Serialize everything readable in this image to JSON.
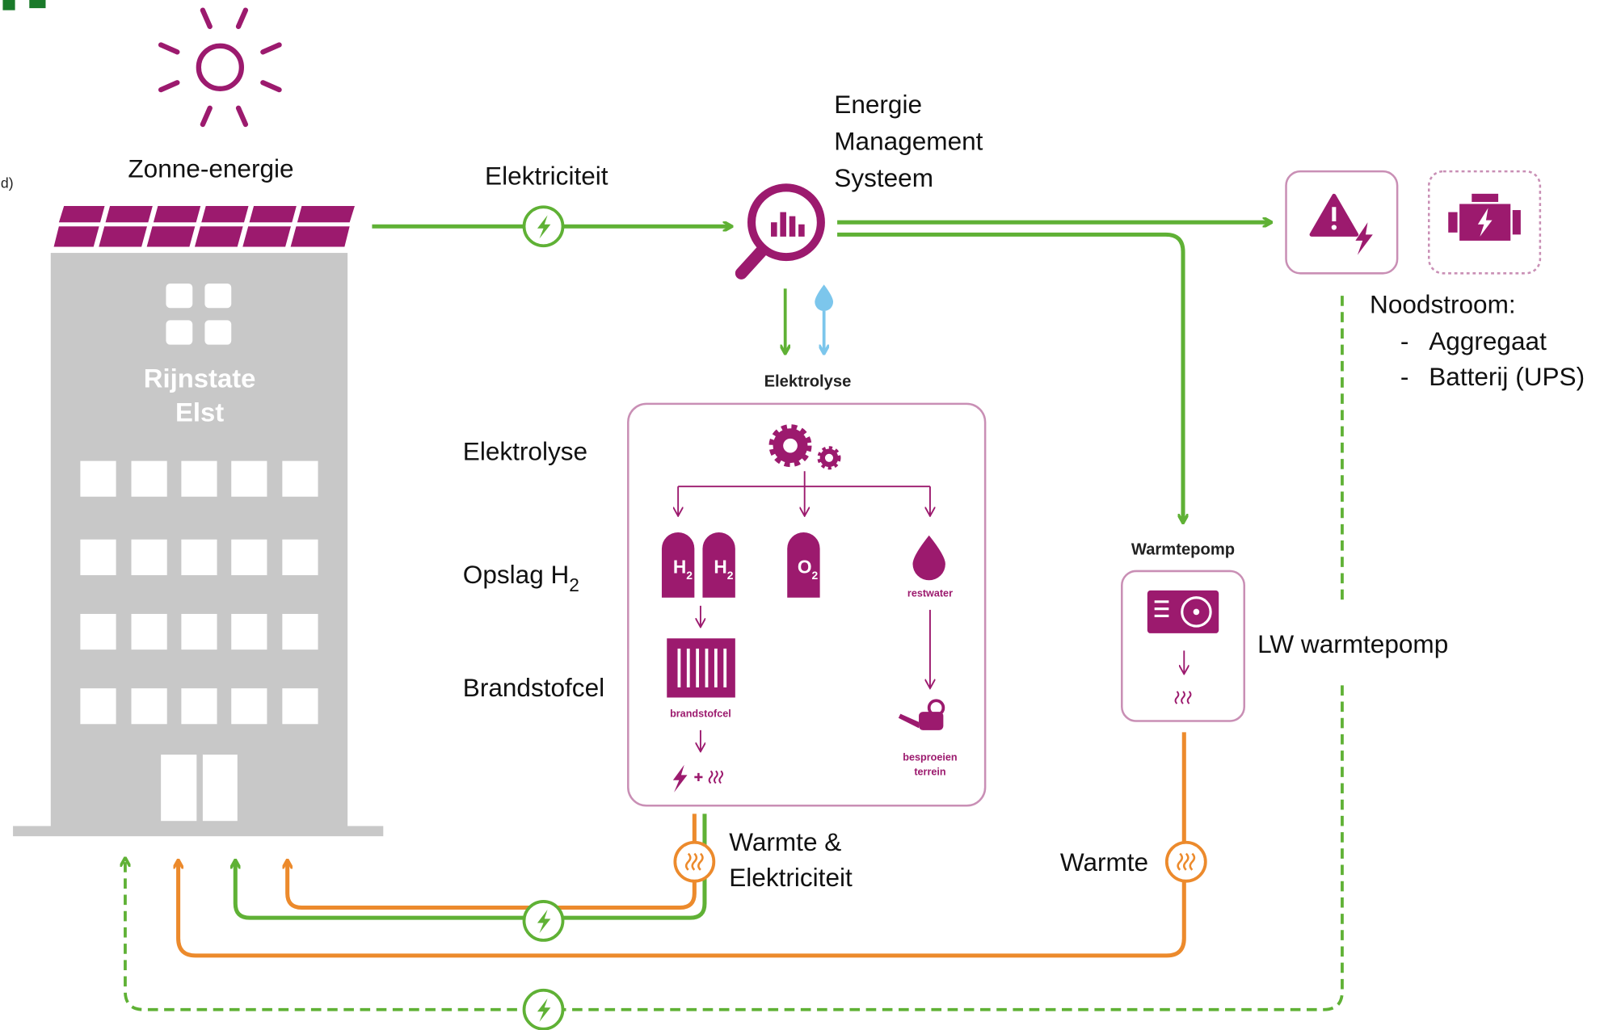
{
  "edge_fragment": "d)",
  "building": {
    "name_lines": [
      "Rijnstate",
      "Elst"
    ]
  },
  "solar": {
    "label": "Zonne-energie"
  },
  "electricity": {
    "label": "Elektriciteit"
  },
  "ems": {
    "label_lines": [
      "Energie",
      "Management",
      "Systeem"
    ]
  },
  "electrolysis_input": {
    "label": "Elektrolyse"
  },
  "stages": {
    "electrolysis": "Elektrolyse",
    "storage": {
      "text": "Opslag H",
      "sub": "2"
    },
    "fuel_cell": "Brandstofcel"
  },
  "tanks": [
    {
      "symbol": "H",
      "sub": "2"
    },
    {
      "symbol": "H",
      "sub": "2"
    },
    {
      "symbol": "O",
      "sub": "2"
    }
  ],
  "process_labels": {
    "restwater": "restwater",
    "fuel_cell": "brandstofcel",
    "irrigation_lines": [
      "besproeien",
      "terrein"
    ]
  },
  "heat_pump": {
    "title": "Warmtepomp",
    "label": "LW warmtepomp"
  },
  "outputs": {
    "heat_and_power_lines": [
      "Warmte &",
      "Elektriciteit"
    ],
    "heat": "Warmte"
  },
  "emergency": {
    "title": "Noodstroom:",
    "bullet": "-",
    "items": [
      "Aggregaat",
      "Batterij (UPS)"
    ]
  }
}
